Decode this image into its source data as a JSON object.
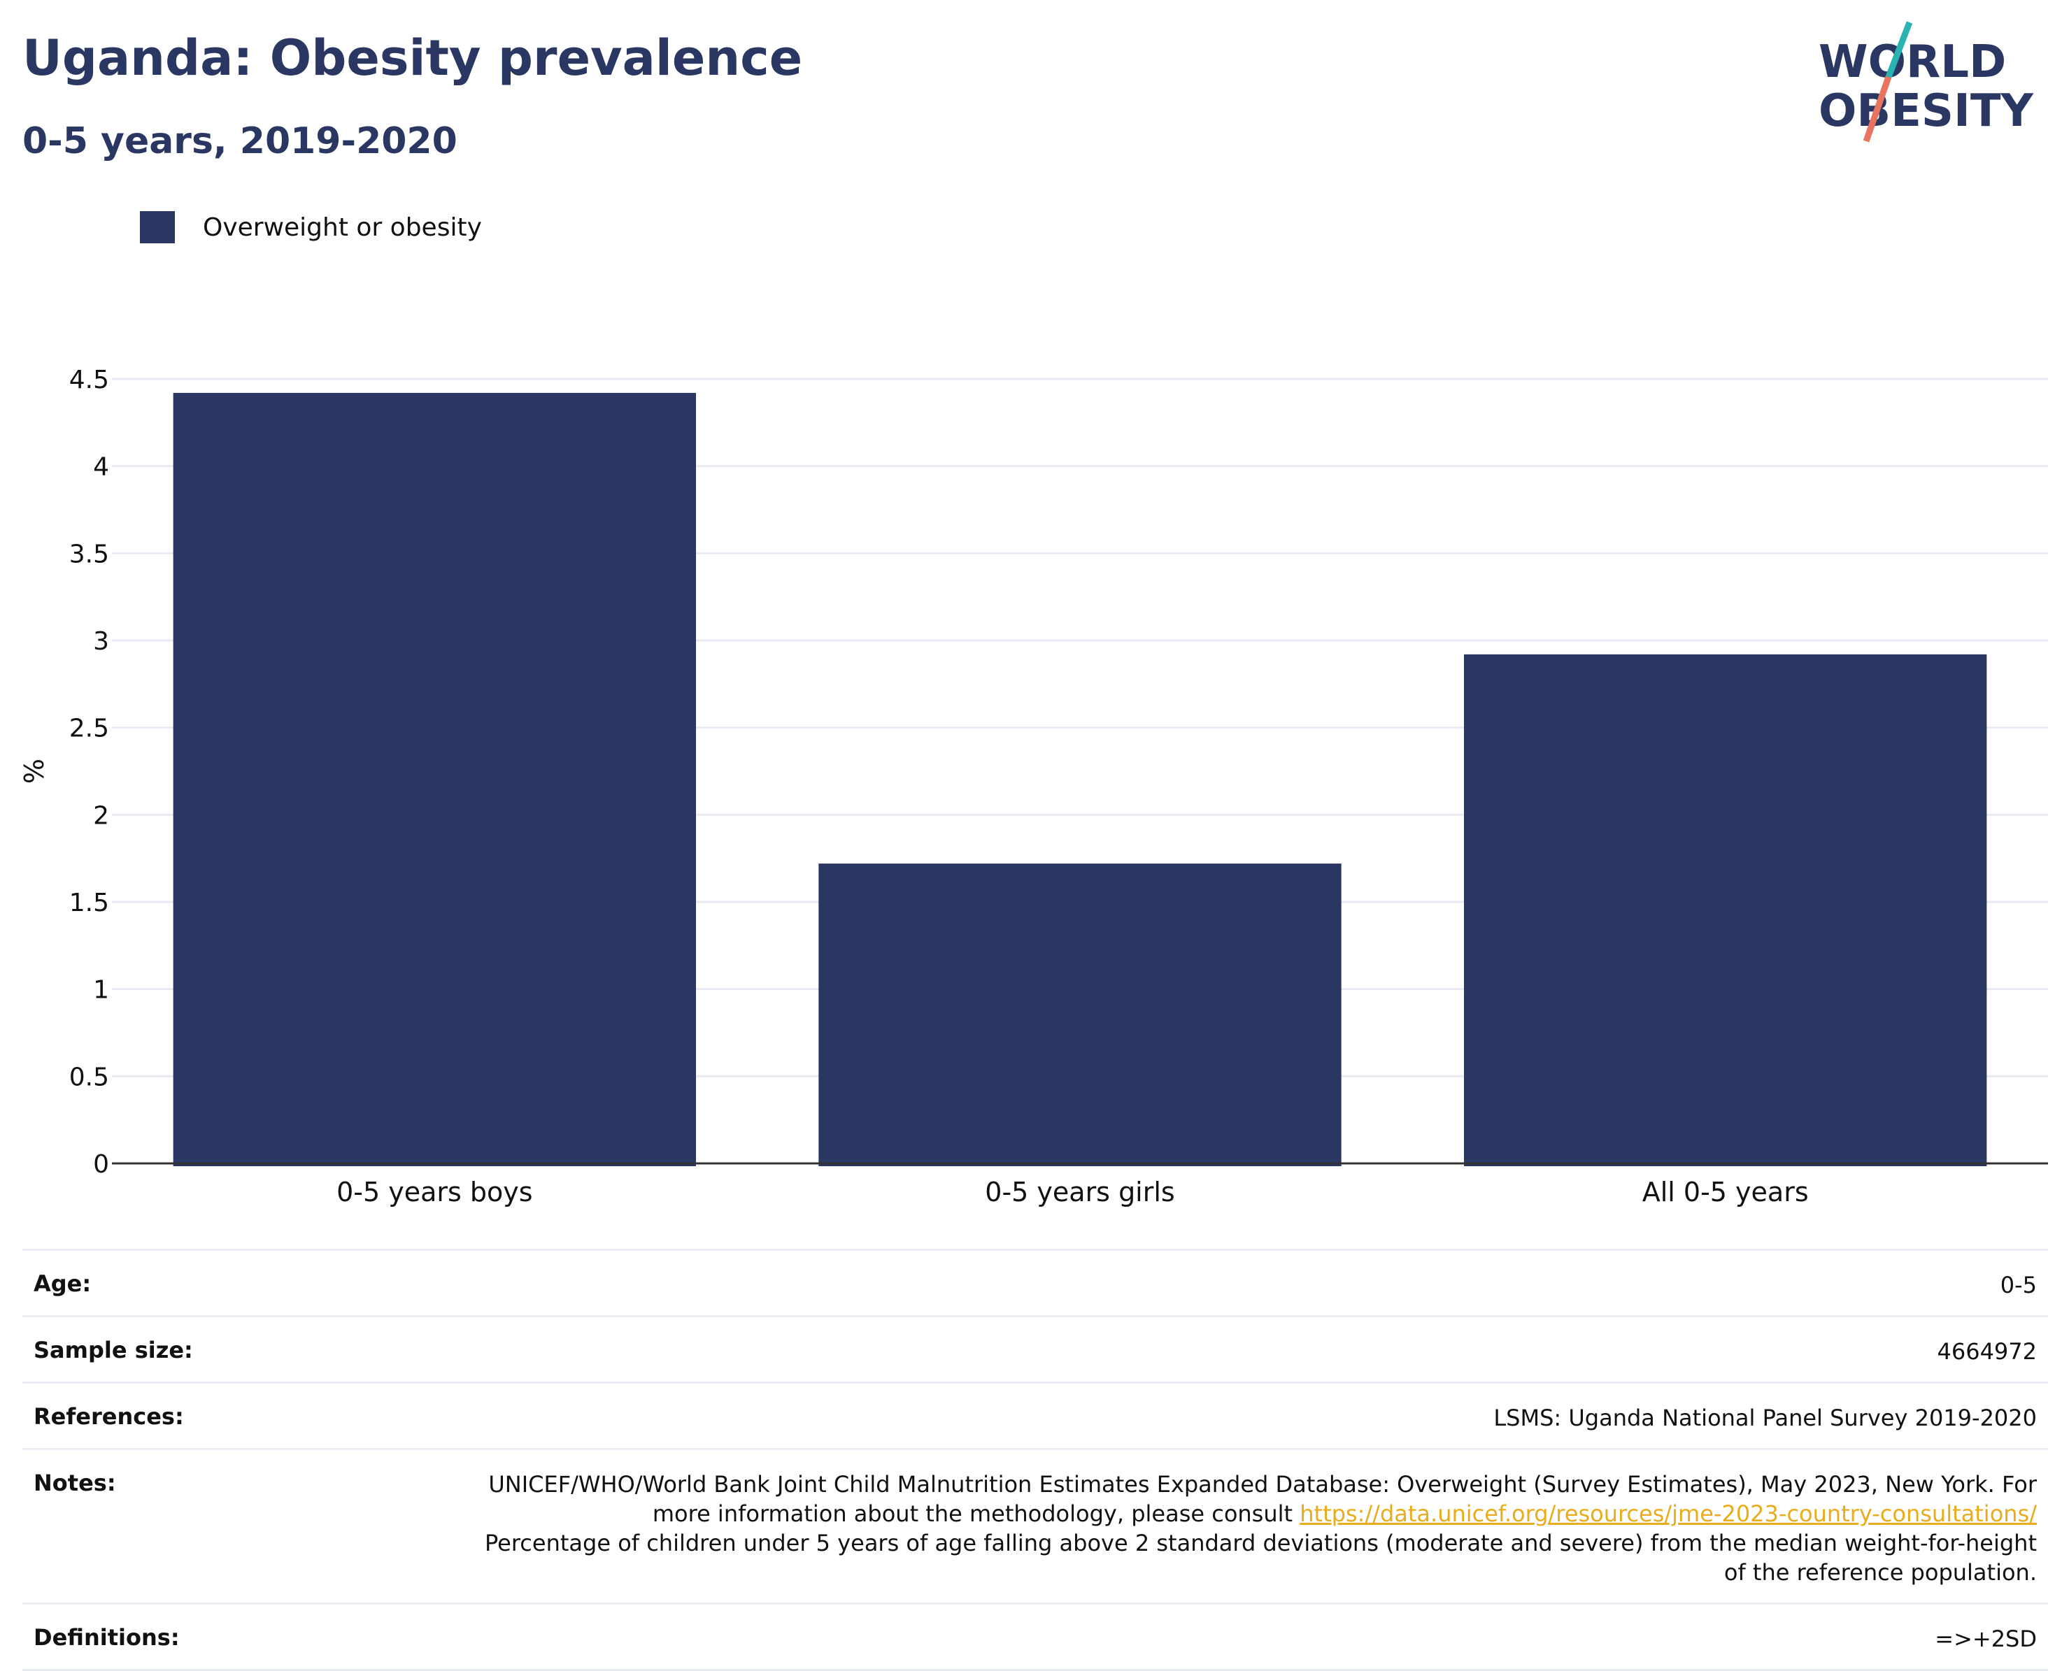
{
  "header": {
    "title": "Uganda: Obesity prevalence",
    "subtitle": "0-5 years, 2019-2020"
  },
  "logo": {
    "line1": "WORLD",
    "line2": "OBESITY",
    "text_color": "#2a3763",
    "accent_teal": "#2bb3b1",
    "accent_coral": "#e8735f"
  },
  "legend": {
    "items": [
      {
        "label": "Overweight or obesity",
        "color": "#2a3763"
      }
    ]
  },
  "chart_data": {
    "type": "bar",
    "categories": [
      "0-5 years boys",
      "0-5 years girls",
      "All 0-5 years"
    ],
    "series": [
      {
        "name": "Overweight or obesity",
        "values": [
          4.42,
          1.72,
          2.92
        ]
      }
    ],
    "title": "Uganda: Obesity prevalence",
    "subtitle": "0-5 years, 2019-2020",
    "xlabel": "",
    "ylabel": "%",
    "ylim": [
      0,
      4.5
    ],
    "yticks": [
      0,
      0.5,
      1,
      1.5,
      2,
      2.5,
      3,
      3.5,
      4,
      4.5
    ],
    "ytick_labels": [
      "0",
      "0.5",
      "1",
      "1.5",
      "2",
      "2.5",
      "3",
      "3.5",
      "4",
      "4.5"
    ],
    "grid": true,
    "legend_position": "top-left",
    "bar_color": "#2a3763"
  },
  "meta": {
    "age_label": "Age:",
    "age_value": "0-5",
    "sample_label": "Sample size:",
    "sample_value": "4664972",
    "references_label": "References:",
    "references_value": "LSMS: Uganda National Panel Survey 2019-2020",
    "notes_label": "Notes:",
    "notes_text1": "UNICEF/WHO/World Bank Joint Child Malnutrition Estimates Expanded Database: Overweight (Survey Estimates), May 2023, New York. For more information about the methodology, please consult ",
    "notes_link": "https://data.unicef.org/resources/jme-2023-country-consultations/",
    "notes_text2": "Percentage of children under 5 years of age falling above 2 standard deviations (moderate and severe) from the median weight-for-height of the reference population.",
    "definitions_label": "Definitions:",
    "definitions_value": "=>+2SD",
    "link_color": "#e9ac1c"
  }
}
